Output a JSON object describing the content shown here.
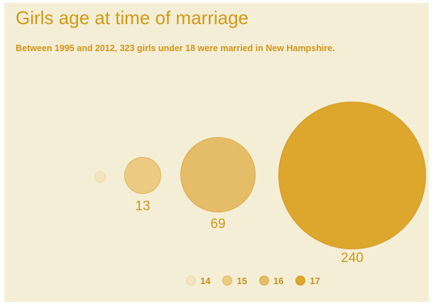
{
  "header": {
    "title": "Girls age at time of marriage",
    "subtitle": "Between 1995 and 2012, 323 girls under 18 were married in New Hampshire."
  },
  "bubbles": [
    {
      "age": "14",
      "count_label": "",
      "color": "#f2e4c0"
    },
    {
      "age": "15",
      "count_label": "13",
      "color": "#ebcb81"
    },
    {
      "age": "16",
      "count_label": "69",
      "color": "#e5bd68"
    },
    {
      "age": "17",
      "count_label": "240",
      "color": "#dda62d"
    }
  ],
  "legend": {
    "items": [
      {
        "label": "14",
        "color": "#f2e4c0"
      },
      {
        "label": "15",
        "color": "#ebcb81"
      },
      {
        "label": "16",
        "color": "#e5bd68"
      },
      {
        "label": "17",
        "color": "#dda62d"
      }
    ]
  },
  "colors": {
    "page_background": "#ffffff",
    "card_background": "#f5eed6",
    "title_text": "#cf9a18",
    "subtitle_text": "#d0961a",
    "value_label_text": "#ca9720",
    "legend_label_text": "#c69120"
  },
  "chart_data": {
    "type": "bubble",
    "title": "Girls age at time of marriage",
    "subtitle": "Between 1995 and 2012, 323 girls under 18 were married in New Hampshire.",
    "categories": [
      "14",
      "15",
      "16",
      "17"
    ],
    "values": [
      1,
      13,
      69,
      240
    ],
    "smallest_value_estimated_from_bubble_size": true,
    "visible_value_labels": [
      "13",
      "69",
      "240"
    ],
    "total": 323,
    "colors": [
      "#f2e4c0",
      "#ebcb81",
      "#e5bd68",
      "#dda62d"
    ],
    "legend_entries": [
      "14",
      "15",
      "16",
      "17"
    ],
    "legend_position": "bottom-center",
    "bubble_area_proportional_to_value": true,
    "grid": false
  }
}
